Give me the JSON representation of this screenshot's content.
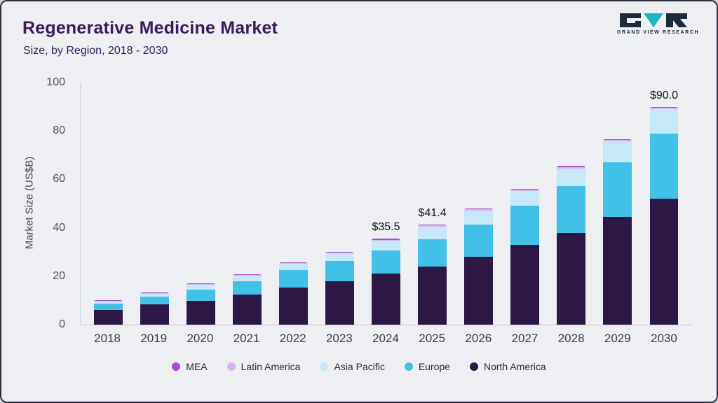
{
  "header": {
    "title": "Regenerative Medicine Market",
    "subtitle": "Size, by Region, 2018 - 2030"
  },
  "logo": {
    "text": "GRAND VIEW RESEARCH"
  },
  "colors": {
    "background": "#edeff3",
    "border": "#2e2e3e",
    "title_text": "#3c1b59",
    "logo_dark": "#1c2a3a",
    "logo_teal": "#17b8c4"
  },
  "chart_data": {
    "type": "bar",
    "stacked": true,
    "title": "Regenerative Medicine Market Size, by Region, 2018 - 2030",
    "ylabel": "Market Size (US$B)",
    "ylim": [
      0,
      100
    ],
    "yticks": [
      0,
      20,
      40,
      60,
      80,
      100
    ],
    "grid": false,
    "legend_position": "bottom",
    "categories": [
      "2018",
      "2019",
      "2020",
      "2021",
      "2022",
      "2023",
      "2024",
      "2025",
      "2026",
      "2027",
      "2028",
      "2029",
      "2030"
    ],
    "series": [
      {
        "name": "North America",
        "color": "#2d1745",
        "values": [
          6.2,
          8.5,
          10.0,
          12.5,
          15.5,
          18.0,
          21.0,
          24.0,
          28.0,
          33.0,
          38.0,
          44.5,
          52.0
        ]
      },
      {
        "name": "Europe",
        "color": "#41c0e8",
        "values": [
          2.6,
          3.2,
          4.6,
          5.6,
          7.0,
          8.4,
          9.6,
          11.4,
          13.4,
          16.0,
          19.2,
          22.6,
          27.0
        ]
      },
      {
        "name": "Asia Pacific",
        "color": "#c6e8f8",
        "values": [
          1.0,
          1.2,
          2.0,
          2.3,
          2.6,
          3.2,
          4.0,
          5.0,
          5.6,
          6.2,
          7.3,
          8.5,
          10.0
        ]
      },
      {
        "name": "Latin America",
        "color": "#d8b5e8",
        "values": [
          0.2,
          0.2,
          0.3,
          0.3,
          0.3,
          0.3,
          0.5,
          0.6,
          0.6,
          0.6,
          0.6,
          0.6,
          0.6
        ]
      },
      {
        "name": "MEA",
        "color": "#a44fd0",
        "values": [
          0.1,
          0.1,
          0.2,
          0.2,
          0.2,
          0.2,
          0.4,
          0.4,
          0.4,
          0.4,
          0.4,
          0.4,
          0.4
        ]
      }
    ],
    "legend_order": [
      "MEA",
      "Latin America",
      "Asia Pacific",
      "Europe",
      "North America"
    ],
    "annotations": [
      {
        "category": "2024",
        "label": "$35.5"
      },
      {
        "category": "2025",
        "label": "$41.4"
      },
      {
        "category": "2030",
        "label": "$90.0"
      }
    ]
  }
}
